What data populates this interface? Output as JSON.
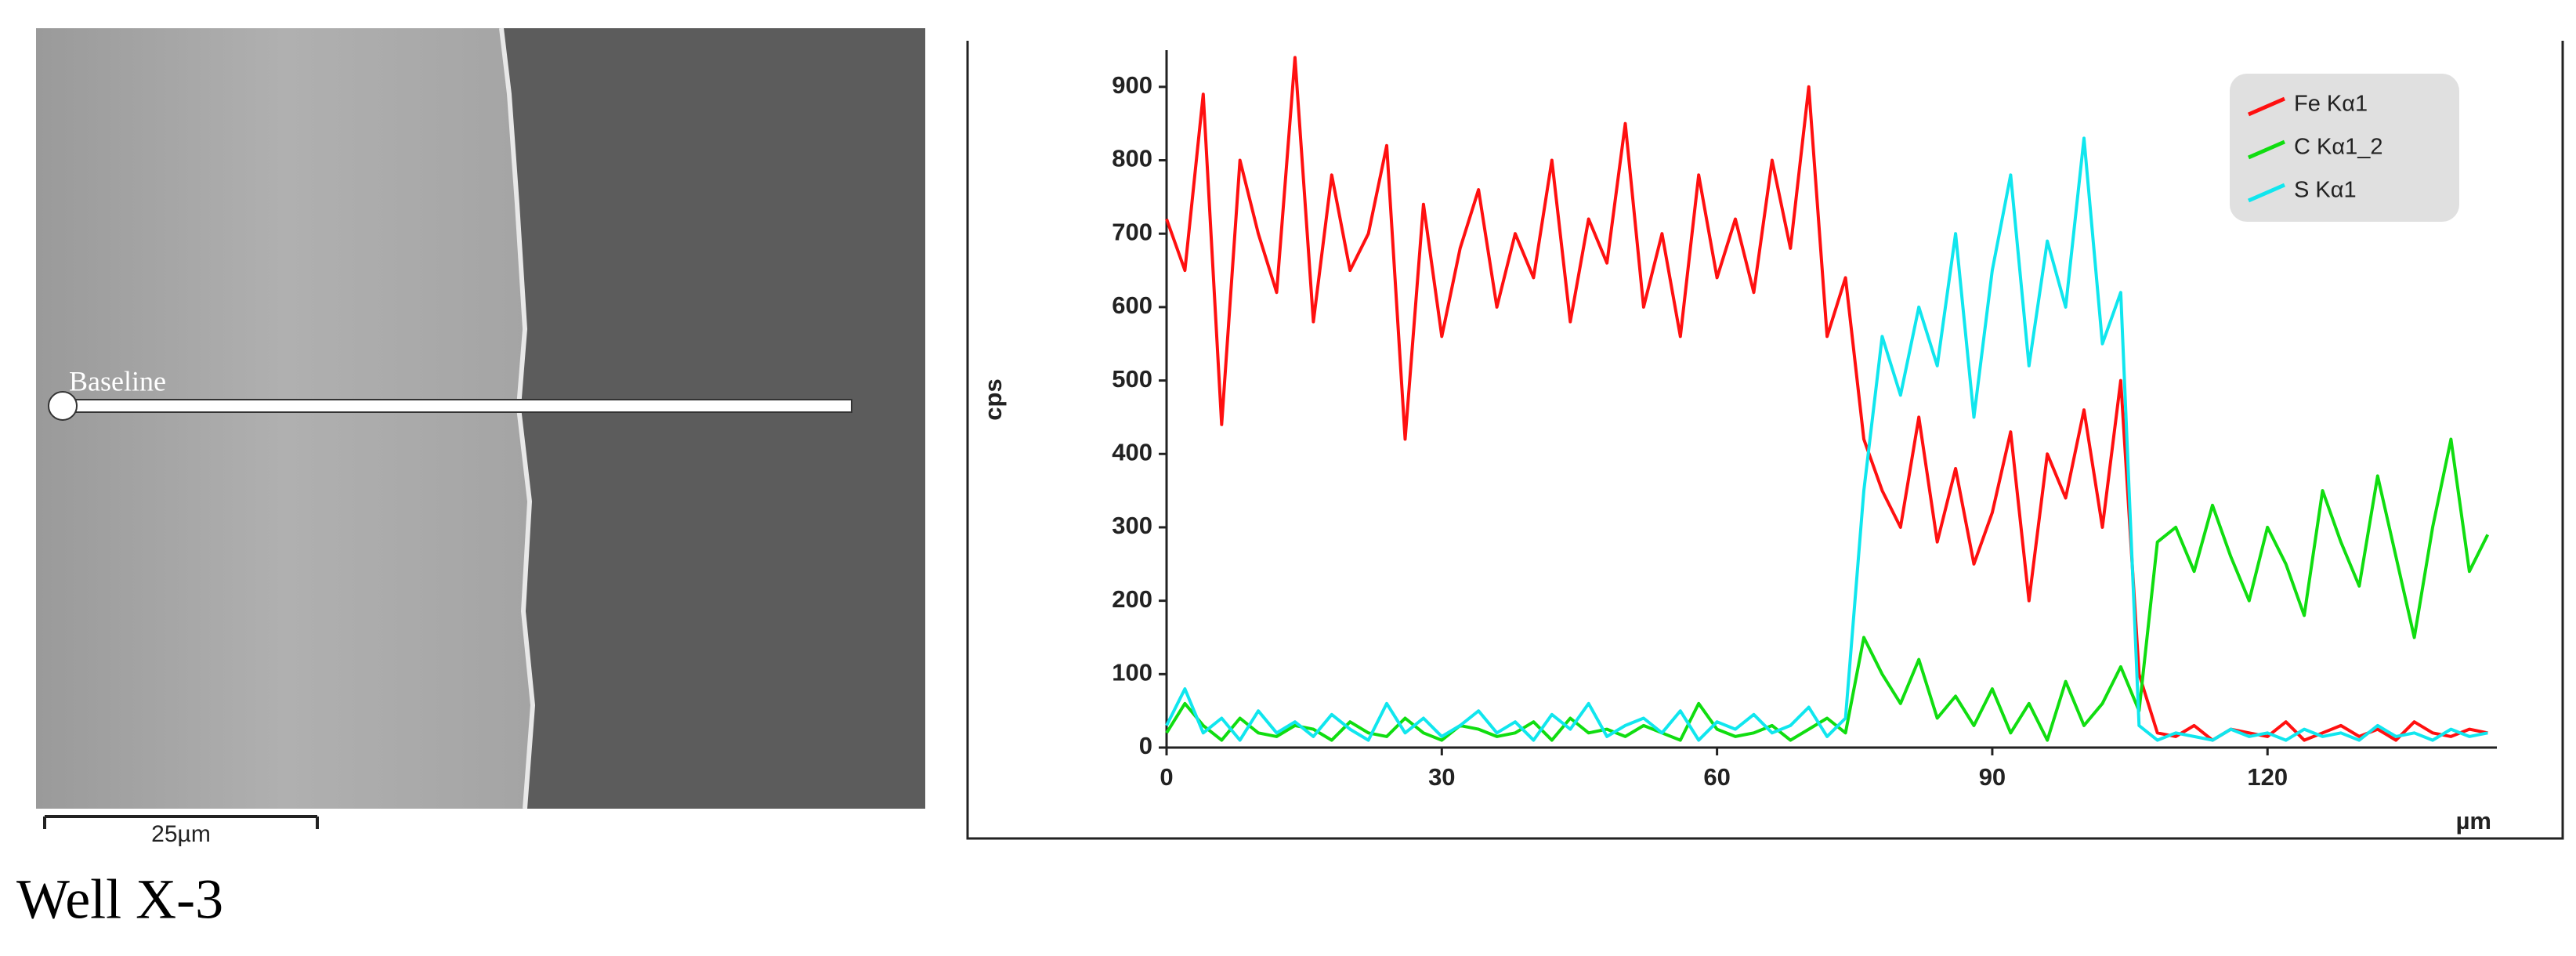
{
  "figure": {
    "image_label": "Baseline",
    "scale_bar": "25µm",
    "caption": "Well X-3"
  },
  "chart_data": {
    "type": "line",
    "xlabel": "µm",
    "ylabel": "cps",
    "legend": "upper right",
    "xlim": [
      0,
      145
    ],
    "ylim": [
      0,
      950
    ],
    "xticks": [
      0,
      30,
      60,
      90,
      120
    ],
    "yticks": [
      0,
      100,
      200,
      300,
      400,
      500,
      600,
      700,
      800,
      900
    ],
    "x": [
      0,
      2,
      4,
      6,
      8,
      10,
      12,
      14,
      16,
      18,
      20,
      22,
      24,
      26,
      28,
      30,
      32,
      34,
      36,
      38,
      40,
      42,
      44,
      46,
      48,
      50,
      52,
      54,
      56,
      58,
      60,
      62,
      64,
      66,
      68,
      70,
      72,
      74,
      76,
      78,
      80,
      82,
      84,
      86,
      88,
      90,
      92,
      94,
      96,
      98,
      100,
      102,
      104,
      106,
      108,
      110,
      112,
      114,
      116,
      118,
      120,
      122,
      124,
      126,
      128,
      130,
      132,
      134,
      136,
      138,
      140,
      142,
      144
    ],
    "series": [
      {
        "name": "Fe Kα1",
        "color": "#ff1010",
        "values": [
          720,
          650,
          890,
          440,
          800,
          700,
          620,
          940,
          580,
          780,
          650,
          700,
          820,
          420,
          740,
          560,
          680,
          760,
          600,
          700,
          640,
          800,
          580,
          720,
          660,
          850,
          600,
          700,
          560,
          780,
          640,
          720,
          620,
          800,
          680,
          900,
          560,
          640,
          420,
          350,
          300,
          450,
          280,
          380,
          250,
          320,
          430,
          200,
          400,
          340,
          460,
          300,
          500,
          100,
          20,
          15,
          30,
          10,
          25,
          20,
          15,
          35,
          10,
          20,
          30,
          15,
          25,
          10,
          35,
          20,
          15,
          25,
          20
        ]
      },
      {
        "name": "C Kα1_2",
        "color": "#10dd10",
        "values": [
          20,
          60,
          30,
          10,
          40,
          20,
          15,
          30,
          25,
          10,
          35,
          20,
          15,
          40,
          20,
          10,
          30,
          25,
          15,
          20,
          35,
          10,
          40,
          20,
          25,
          15,
          30,
          20,
          10,
          60,
          25,
          15,
          20,
          30,
          10,
          25,
          40,
          20,
          150,
          100,
          60,
          120,
          40,
          70,
          30,
          80,
          20,
          60,
          10,
          90,
          30,
          60,
          110,
          50,
          280,
          300,
          240,
          330,
          260,
          200,
          300,
          250,
          180,
          350,
          280,
          220,
          370,
          260,
          150,
          300,
          420,
          240,
          290
        ]
      },
      {
        "name": "S Kα1",
        "color": "#10e6ee",
        "values": [
          30,
          80,
          20,
          40,
          10,
          50,
          20,
          35,
          15,
          45,
          25,
          10,
          60,
          20,
          40,
          15,
          30,
          50,
          20,
          35,
          10,
          45,
          25,
          60,
          15,
          30,
          40,
          20,
          50,
          10,
          35,
          25,
          45,
          20,
          30,
          55,
          15,
          40,
          350,
          560,
          480,
          600,
          520,
          700,
          450,
          650,
          780,
          520,
          690,
          600,
          830,
          550,
          620,
          30,
          10,
          20,
          15,
          10,
          25,
          15,
          20,
          10,
          25,
          15,
          20,
          10,
          30,
          15,
          20,
          10,
          25,
          15,
          20
        ]
      }
    ]
  }
}
